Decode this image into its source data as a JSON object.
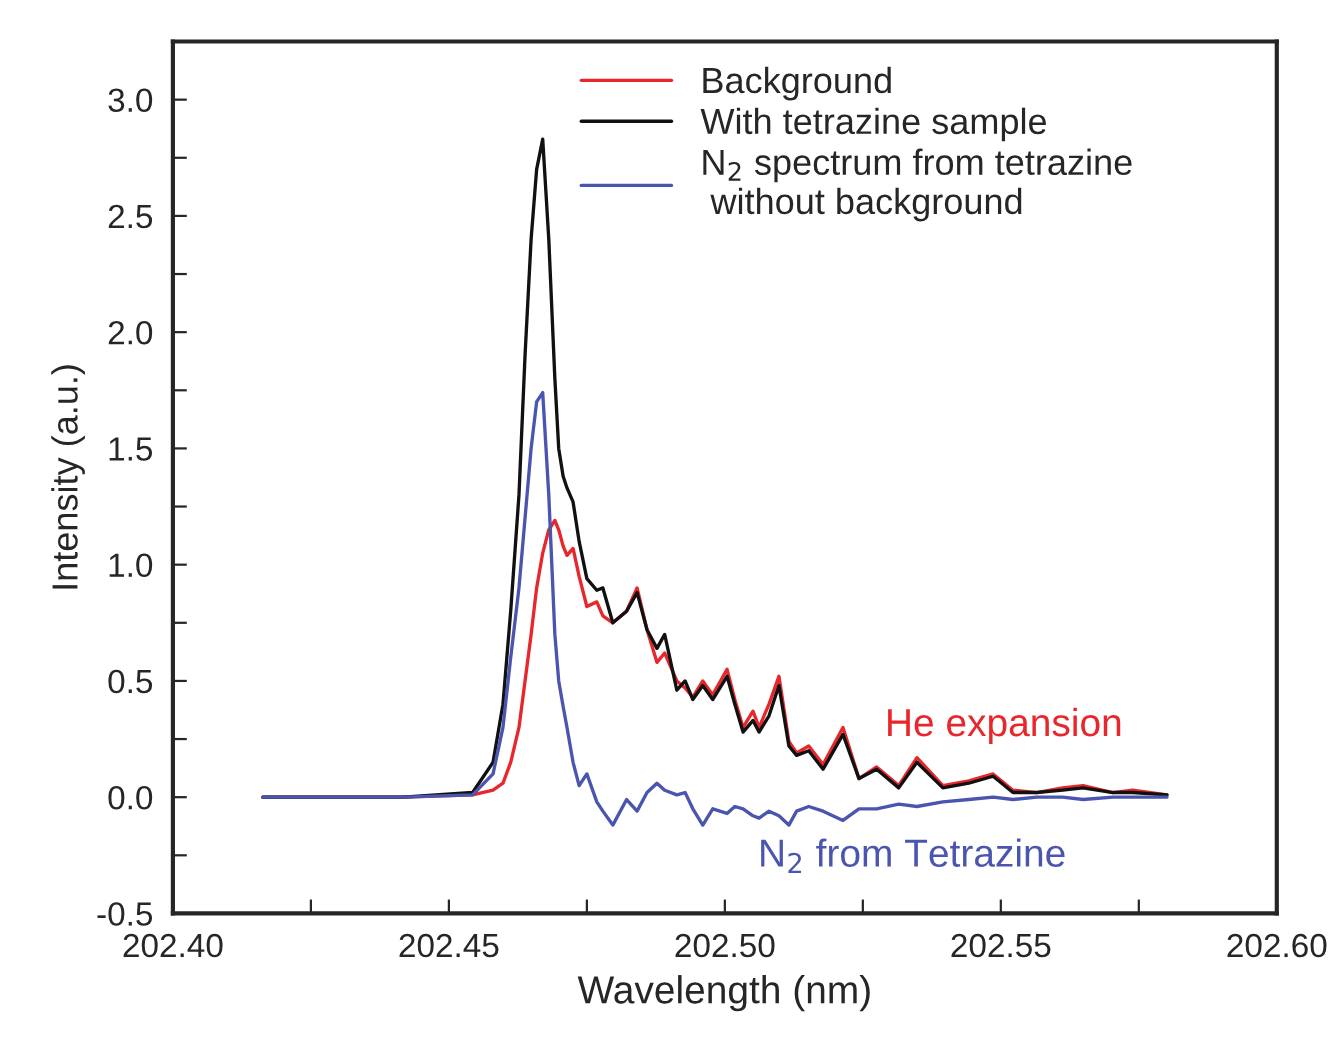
{
  "chart_data": {
    "type": "line",
    "xlabel": "Wavelength (nm)",
    "ylabel": "Intensity (a.u.)",
    "xlim": [
      202.4,
      202.6
    ],
    "xticks": [
      {
        "value": 202.4,
        "label": "202.40"
      },
      {
        "value": 202.425,
        "label": null
      },
      {
        "value": 202.45,
        "label": "202.45"
      },
      {
        "value": 202.475,
        "label": null
      },
      {
        "value": 202.5,
        "label": "202.50"
      },
      {
        "value": 202.525,
        "label": null
      },
      {
        "value": 202.55,
        "label": "202.55"
      },
      {
        "value": 202.575,
        "label": null
      },
      {
        "value": 202.6,
        "label": "202.60"
      }
    ],
    "ylim": [
      -0.5,
      3.25
    ],
    "yticks": [
      {
        "value": -0.5,
        "label": "-0.5"
      },
      {
        "value": -0.25,
        "label": null
      },
      {
        "value": 0.0,
        "label": "0.0"
      },
      {
        "value": 0.25,
        "label": null
      },
      {
        "value": 0.5,
        "label": "0.5"
      },
      {
        "value": 0.75,
        "label": null
      },
      {
        "value": 1.0,
        "label": "1.0"
      },
      {
        "value": 1.25,
        "label": null
      },
      {
        "value": 1.5,
        "label": "1.5"
      },
      {
        "value": 1.75,
        "label": null
      },
      {
        "value": 2.0,
        "label": "2.0"
      },
      {
        "value": 2.25,
        "label": null
      },
      {
        "value": 2.5,
        "label": "2.5"
      },
      {
        "value": 2.75,
        "label": null
      },
      {
        "value": 3.0,
        "label": "3.0"
      }
    ],
    "grid": false,
    "legend": "top",
    "marker": "none",
    "line_style": "solid",
    "x": [
      202.4163,
      202.4417,
      202.4543,
      202.458,
      202.4598,
      202.4612,
      202.4627,
      202.4638,
      202.4649,
      202.4659,
      202.467,
      202.4681,
      202.4692,
      202.4699,
      202.4707,
      202.4714,
      202.4725,
      202.4736,
      202.475,
      202.4768,
      202.4779,
      202.4797,
      202.4822,
      202.4841,
      202.4859,
      202.4877,
      202.4891,
      202.4913,
      202.4928,
      202.4942,
      202.496,
      202.4978,
      202.5004,
      202.5018,
      202.5033,
      202.5051,
      202.5062,
      202.508,
      202.5098,
      202.5116,
      202.513,
      202.5152,
      202.5178,
      202.5214,
      202.5243,
      202.5275,
      202.5315,
      202.5348,
      202.5395,
      202.5442,
      202.5486,
      202.5522,
      202.5565,
      202.5612,
      202.5649,
      202.5703,
      202.5739,
      202.5801
    ],
    "series": [
      {
        "name": "Background",
        "color": "#e8262b",
        "values": [
          0,
          0,
          0.01,
          0.03,
          0.06,
          0.15,
          0.3,
          0.5,
          0.7,
          0.9,
          1.05,
          1.15,
          1.19,
          1.15,
          1.08,
          1.04,
          1.07,
          0.95,
          0.82,
          0.84,
          0.78,
          0.75,
          0.8,
          0.9,
          0.72,
          0.58,
          0.62,
          0.5,
          0.47,
          0.43,
          0.5,
          0.44,
          0.55,
          0.42,
          0.3,
          0.37,
          0.3,
          0.4,
          0.52,
          0.24,
          0.19,
          0.22,
          0.14,
          0.3,
          0.08,
          0.13,
          0.05,
          0.17,
          0.05,
          0.07,
          0.1,
          0.03,
          0.02,
          0.04,
          0.05,
          0.02,
          0.03,
          0.01
        ]
      },
      {
        "name": "With tetrazine sample",
        "color": "#111111",
        "values": [
          0,
          0,
          0.02,
          0.15,
          0.4,
          0.8,
          1.3,
          1.9,
          2.4,
          2.7,
          2.83,
          2.4,
          1.8,
          1.5,
          1.38,
          1.33,
          1.27,
          1.1,
          0.94,
          0.89,
          0.9,
          0.75,
          0.8,
          0.88,
          0.72,
          0.64,
          0.7,
          0.46,
          0.5,
          0.42,
          0.48,
          0.42,
          0.52,
          0.4,
          0.28,
          0.33,
          0.28,
          0.35,
          0.48,
          0.22,
          0.18,
          0.2,
          0.12,
          0.27,
          0.08,
          0.12,
          0.04,
          0.15,
          0.04,
          0.06,
          0.09,
          0.02,
          0.02,
          0.03,
          0.04,
          0.02,
          0.02,
          0.01
        ]
      },
      {
        "name": "N$_{2}$ spectrum from tetrazine\n without background",
        "color": "#4a55b0",
        "values": [
          0,
          0,
          0.01,
          0.1,
          0.3,
          0.6,
          0.9,
          1.2,
          1.5,
          1.7,
          1.74,
          1.3,
          0.7,
          0.5,
          0.39,
          0.3,
          0.15,
          0.05,
          0.1,
          -0.02,
          -0.06,
          -0.12,
          -0.01,
          -0.06,
          0.02,
          0.06,
          0.03,
          0.01,
          0.02,
          -0.05,
          -0.12,
          -0.05,
          -0.07,
          -0.04,
          -0.05,
          -0.08,
          -0.09,
          -0.06,
          -0.08,
          -0.12,
          -0.06,
          -0.04,
          -0.06,
          -0.1,
          -0.05,
          -0.05,
          -0.03,
          -0.04,
          -0.02,
          -0.01,
          0,
          -0.01,
          0,
          0,
          -0.01,
          0,
          0,
          0
        ]
      }
    ],
    "annotations": [
      "He expansion",
      "N$_{2}$ from Tetrazine"
    ]
  }
}
